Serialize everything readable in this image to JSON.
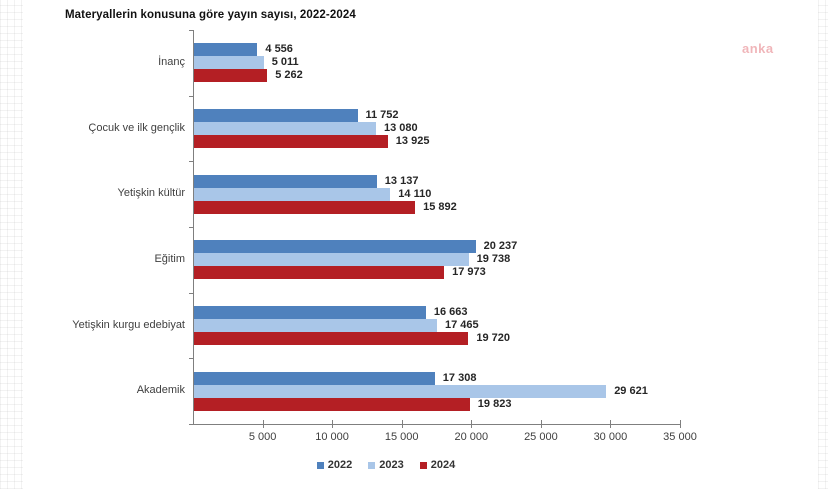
{
  "watermark": {
    "text": "anka"
  },
  "chart_data": {
    "type": "bar",
    "orientation": "horizontal",
    "title": "Materyallerin konusuna göre yayın sayısı, 2022-2024",
    "categories": [
      "İnanç",
      "Çocuk ve ilk gençlik",
      "Yetişkin kültür",
      "Eğitim",
      "Yetişkin kurgu edebiyat",
      "Akademik"
    ],
    "series": [
      {
        "name": "2022",
        "color": "#4f81bd",
        "values": [
          4556,
          11752,
          13137,
          20237,
          16663,
          17308
        ],
        "labels": [
          "4 556",
          "11 752",
          "13 137",
          "20 237",
          "16 663",
          "17 308"
        ]
      },
      {
        "name": "2023",
        "color": "#a9c6e8",
        "values": [
          5011,
          13080,
          14110,
          19738,
          17465,
          29621
        ],
        "labels": [
          "5 011",
          "13 080",
          "14 110",
          "19 738",
          "17 465",
          "29 621"
        ]
      },
      {
        "name": "2024",
        "color": "#b41f24",
        "values": [
          5262,
          13925,
          15892,
          17973,
          19720,
          19823
        ],
        "labels": [
          "5 262",
          "13 925",
          "15 892",
          "17 973",
          "19 720",
          "19 823"
        ]
      }
    ],
    "xlim": [
      0,
      35000
    ],
    "x_ticks": [
      {
        "value": 5000,
        "label": "5 000"
      },
      {
        "value": 10000,
        "label": "10 000"
      },
      {
        "value": 15000,
        "label": "15 000"
      },
      {
        "value": 20000,
        "label": "20 000"
      },
      {
        "value": 25000,
        "label": "25 000"
      },
      {
        "value": 30000,
        "label": "30 000"
      },
      {
        "value": 35000,
        "label": "35 000"
      }
    ],
    "legend_position": "bottom",
    "grid": false
  }
}
